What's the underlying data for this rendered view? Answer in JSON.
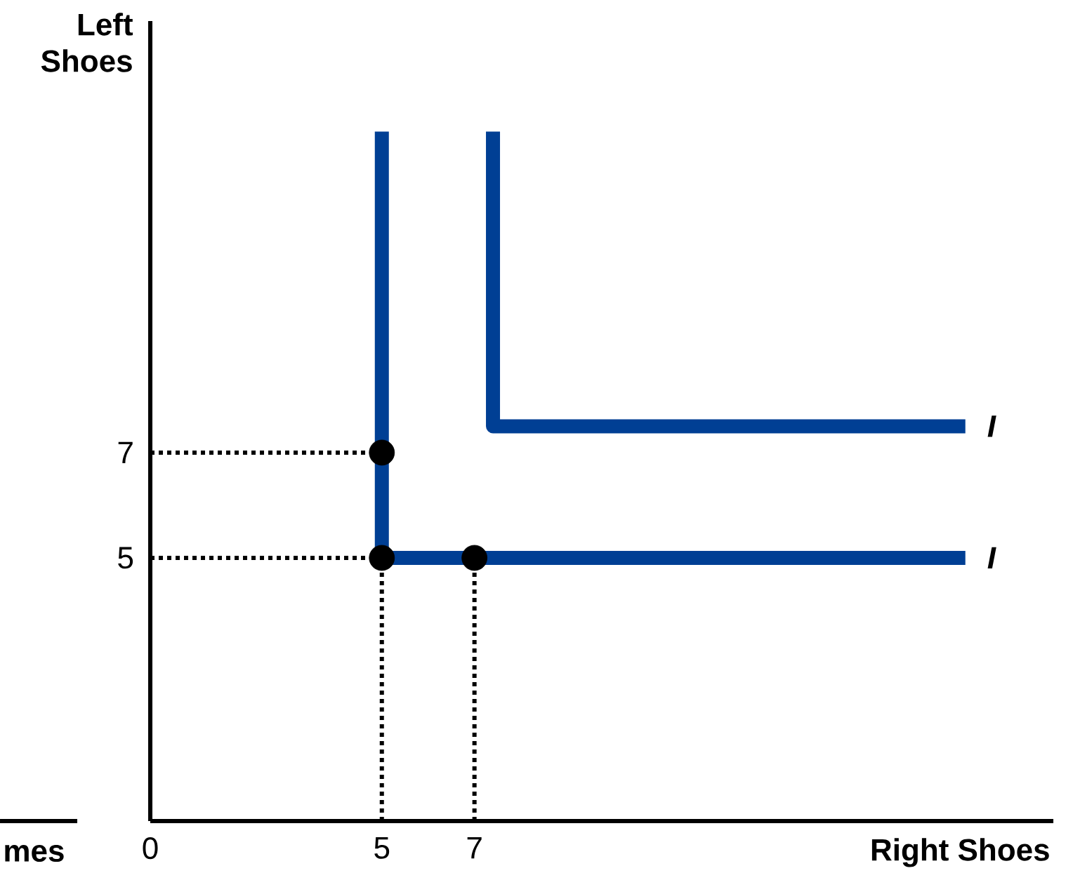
{
  "chart_data": {
    "type": "line",
    "xlabel": "Right Shoes",
    "ylabel": "Left Shoes",
    "xlim": [
      0,
      19.5
    ],
    "ylim": [
      0,
      15.2
    ],
    "xticks": [
      0,
      5,
      7
    ],
    "yticks": [
      5,
      7
    ],
    "series": [
      {
        "color": "#003f94",
        "line_style": "solid",
        "marker": "none",
        "x": [
          5,
          5,
          17.6
        ],
        "values": [
          13.1,
          5,
          5
        ]
      },
      {
        "type": "line",
        "color": "#003f94",
        "line_style": "solid",
        "marker": "none",
        "x": [
          7.4,
          7.4,
          17.6
        ],
        "values": [
          13.1,
          7.5,
          7.5
        ]
      },
      {
        "type": "line",
        "color": "#000000",
        "line_style": "dotted",
        "marker": "none",
        "x": [
          0,
          5
        ],
        "values": [
          7,
          7
        ]
      },
      {
        "type": "line",
        "color": "#000000",
        "line_style": "dotted",
        "marker": "none",
        "x": [
          0,
          5
        ],
        "values": [
          5,
          5
        ]
      },
      {
        "type": "line",
        "color": "#000000",
        "line_style": "dotted",
        "marker": "none",
        "x": [
          5,
          5
        ],
        "values": [
          0,
          5
        ]
      },
      {
        "type": "line",
        "color": "#000000",
        "line_style": "dotted",
        "marker": "none",
        "x": [
          7,
          7
        ],
        "values": [
          0,
          5
        ]
      },
      {
        "type": "scatter",
        "color": "#000000",
        "marker": "circle",
        "x": [
          5,
          5,
          7
        ],
        "values": [
          7,
          5,
          5
        ]
      }
    ],
    "annotations": [
      {
        "text": "I",
        "x": 17.6,
        "y": 7.5
      },
      {
        "text": "I",
        "x": 17.6,
        "y": 5
      },
      "mes"
    ]
  }
}
